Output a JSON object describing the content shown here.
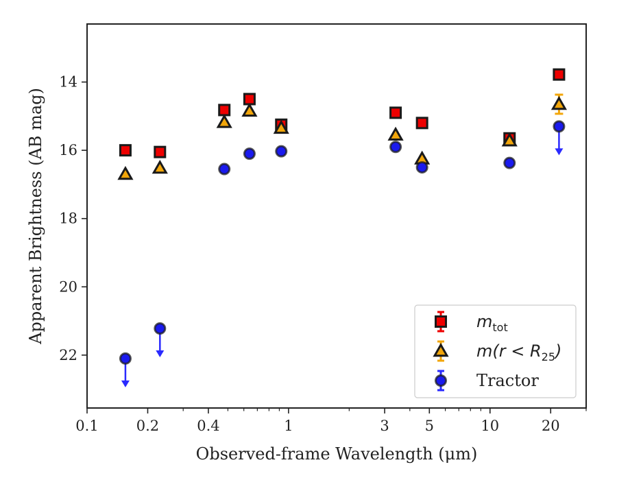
{
  "chart_data": {
    "type": "scatter",
    "xlabel": "Observed-frame Wavelength (μm)",
    "ylabel": "Apparent Brightness (AB mag)",
    "xscale": "log",
    "xlim": [
      0.1,
      30
    ],
    "ylim": [
      23.55,
      12.3
    ],
    "y_inverted": true,
    "grid": false,
    "legend_position": "lower right",
    "x_ticks": [
      0.1,
      0.2,
      0.4,
      1,
      3,
      5,
      10,
      20
    ],
    "x_tick_labels": [
      "0.1",
      "0.2",
      "0.4",
      "1",
      "3",
      "5",
      "10",
      "20"
    ],
    "y_ticks": [
      14,
      16,
      18,
      20,
      22
    ],
    "y_tick_labels": [
      "14",
      "16",
      "18",
      "20",
      "22"
    ],
    "series": [
      {
        "name": "m_tot",
        "legend_main": "m",
        "legend_sub": "tot",
        "marker": "square",
        "color": "#ee0000",
        "errcolor": "#ee0000",
        "points": [
          {
            "x": 0.155,
            "y": 16.0
          },
          {
            "x": 0.23,
            "y": 16.05
          },
          {
            "x": 0.48,
            "y": 14.82
          },
          {
            "x": 0.64,
            "y": 14.5
          },
          {
            "x": 0.92,
            "y": 15.25
          },
          {
            "x": 3.4,
            "y": 14.9
          },
          {
            "x": 4.6,
            "y": 15.2
          },
          {
            "x": 12.5,
            "y": 15.65
          },
          {
            "x": 22.0,
            "y": 13.78
          }
        ]
      },
      {
        "name": "m(r < R_25)",
        "legend_main": "m(r < R",
        "legend_sub": "25",
        "legend_tail": ")",
        "marker": "triangle",
        "color": "#f2a60a",
        "errcolor": "#f2a60a",
        "points": [
          {
            "x": 0.155,
            "y": 16.7
          },
          {
            "x": 0.23,
            "y": 16.52
          },
          {
            "x": 0.48,
            "y": 15.18
          },
          {
            "x": 0.64,
            "y": 14.85
          },
          {
            "x": 0.92,
            "y": 15.35
          },
          {
            "x": 3.4,
            "y": 15.55
          },
          {
            "x": 4.6,
            "y": 16.25
          },
          {
            "x": 12.5,
            "y": 15.72
          },
          {
            "x": 22.0,
            "y": 14.65,
            "err": 0.28
          }
        ]
      },
      {
        "name": "Tractor",
        "legend_main": "Tractor",
        "marker": "circle",
        "color": "#1a1aee",
        "errcolor": "#2a2aff",
        "points": [
          {
            "x": 0.155,
            "y": 22.1,
            "upper_limit": true
          },
          {
            "x": 0.23,
            "y": 21.22,
            "upper_limit": true
          },
          {
            "x": 0.48,
            "y": 16.55
          },
          {
            "x": 0.64,
            "y": 16.1
          },
          {
            "x": 0.92,
            "y": 16.03
          },
          {
            "x": 3.4,
            "y": 15.9
          },
          {
            "x": 4.6,
            "y": 16.5
          },
          {
            "x": 12.5,
            "y": 16.37
          },
          {
            "x": 22.0,
            "y": 15.3,
            "upper_limit": true
          }
        ]
      }
    ]
  }
}
